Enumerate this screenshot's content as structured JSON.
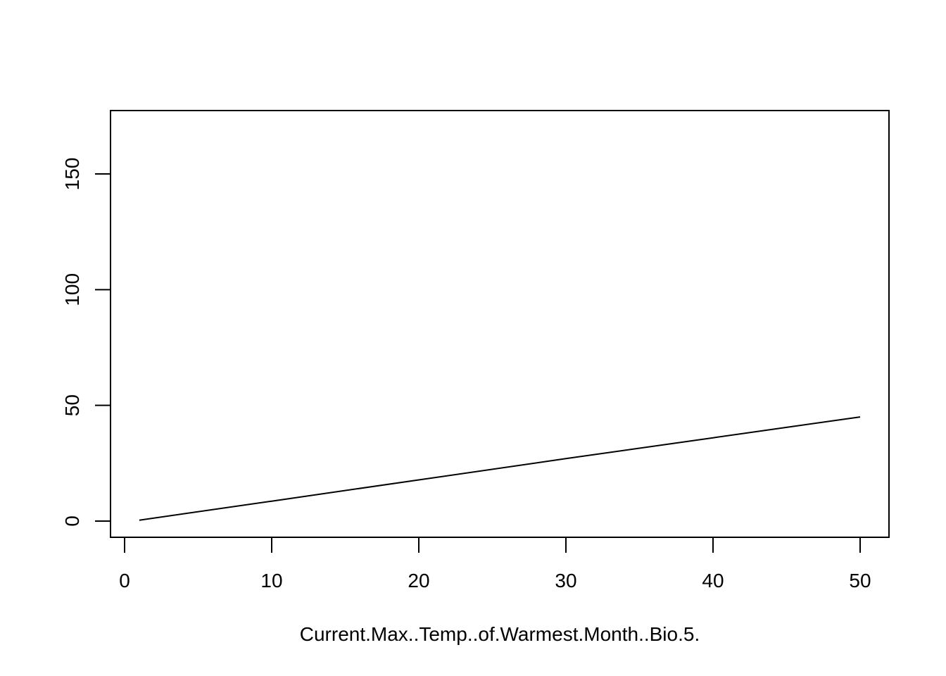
{
  "chart_data": {
    "type": "line",
    "title": "",
    "xlabel": "Current.Max..Temp..of.Warmest.Month..Bio.5.",
    "ylabel": "",
    "xlim": [
      0,
      50
    ],
    "ylim": [
      0,
      170
    ],
    "x_ticks": [
      0,
      10,
      20,
      30,
      40,
      50
    ],
    "y_ticks": [
      0,
      50,
      100,
      150
    ],
    "grid": false,
    "legend": "none",
    "line_color": "#000000",
    "series": [
      {
        "x": [
          1,
          10,
          20,
          30,
          40,
          45,
          50
        ],
        "values": [
          0.4,
          8.6,
          17.8,
          27.0,
          36.0,
          40.5,
          45.0
        ]
      }
    ]
  }
}
